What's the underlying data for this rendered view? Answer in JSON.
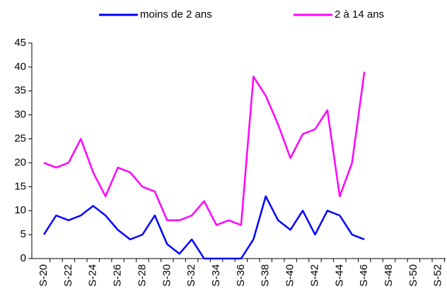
{
  "chart_data": {
    "type": "line",
    "categories": [
      "S-20",
      null,
      "S-22",
      null,
      "S-24",
      null,
      "S-26",
      null,
      "S-28",
      null,
      "S-30",
      null,
      "S-32",
      null,
      "S-34",
      null,
      "S-36",
      null,
      "S-38",
      null,
      "S-40",
      null,
      "S-42",
      null,
      "S-44",
      null,
      "S-46",
      null,
      "S-48",
      null,
      "S-50",
      null,
      "S-52"
    ],
    "series": [
      {
        "name": "moins de 2 ans",
        "color": "#0000ff",
        "values": [
          5,
          9,
          8,
          9,
          11,
          9,
          6,
          4,
          5,
          9,
          3,
          1,
          4,
          0,
          0,
          0,
          0,
          4,
          13,
          8,
          6,
          10,
          5,
          10,
          9,
          5,
          4,
          null,
          null,
          null,
          null,
          null,
          null
        ]
      },
      {
        "name": "2 à 14 ans",
        "color": "#ff00ff",
        "values": [
          20,
          19,
          20,
          25,
          18,
          13,
          19,
          18,
          15,
          14,
          8,
          8,
          9,
          12,
          7,
          8,
          7,
          38,
          34,
          28,
          21,
          26,
          27,
          31,
          13,
          20,
          39,
          null,
          null,
          null,
          null,
          null,
          null
        ]
      }
    ],
    "ylim": [
      0,
      45
    ],
    "yticks": [
      0,
      5,
      10,
      15,
      20,
      25,
      30,
      35,
      40,
      45
    ],
    "legend": "top"
  }
}
